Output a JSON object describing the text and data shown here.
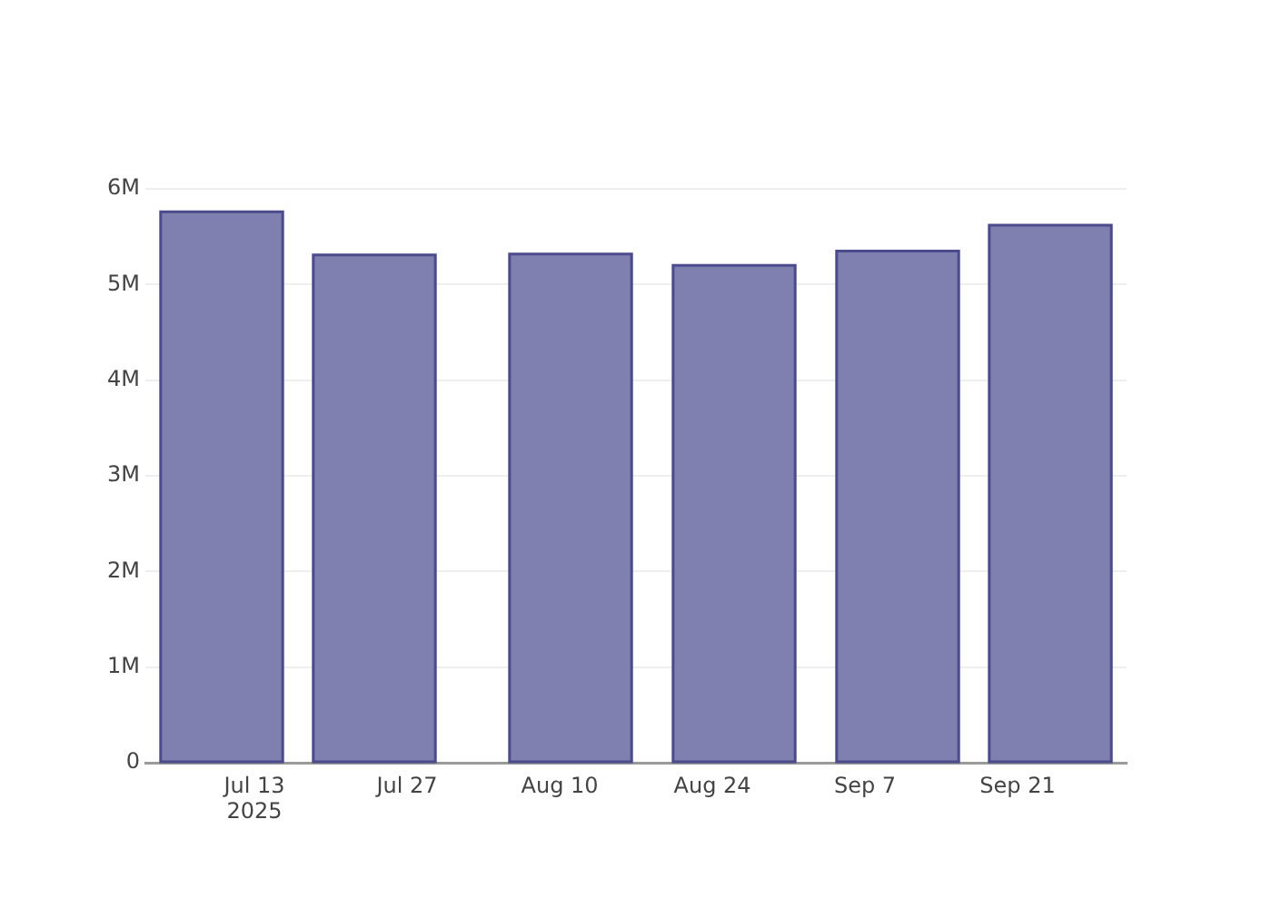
{
  "chart_data": {
    "type": "bar",
    "x": [
      "2025-07-10",
      "2025-07-24",
      "2025-08-11",
      "2025-08-26",
      "2025-09-10",
      "2025-09-24"
    ],
    "values": [
      5760000,
      5310000,
      5320000,
      5200000,
      5350000,
      5620000
    ],
    "color": "#7f7fb0",
    "xlim": [
      "2025-07-03",
      "2025-10-01"
    ],
    "xticks": [
      {
        "value": "2025-07-13",
        "label": "Jul 13\n2025"
      },
      {
        "value": "2025-07-27",
        "label": "Jul 27"
      },
      {
        "value": "2025-08-10",
        "label": "Aug 10"
      },
      {
        "value": "2025-08-24",
        "label": "Aug 24"
      },
      {
        "value": "2025-09-07",
        "label": "Sep 7"
      },
      {
        "value": "2025-09-21",
        "label": "Sep 21"
      }
    ],
    "ylim": [
      0,
      6000000
    ],
    "yticks": [
      0,
      {
        "value": 1000000,
        "label": "1M"
      },
      {
        "value": 2000000,
        "label": "2M"
      },
      {
        "value": 3000000,
        "label": "3M"
      },
      {
        "value": 4000000,
        "label": "4M"
      },
      {
        "value": 5000000,
        "label": "5M"
      },
      {
        "value": 6000000,
        "label": "6M"
      }
    ],
    "grid": "y"
  }
}
